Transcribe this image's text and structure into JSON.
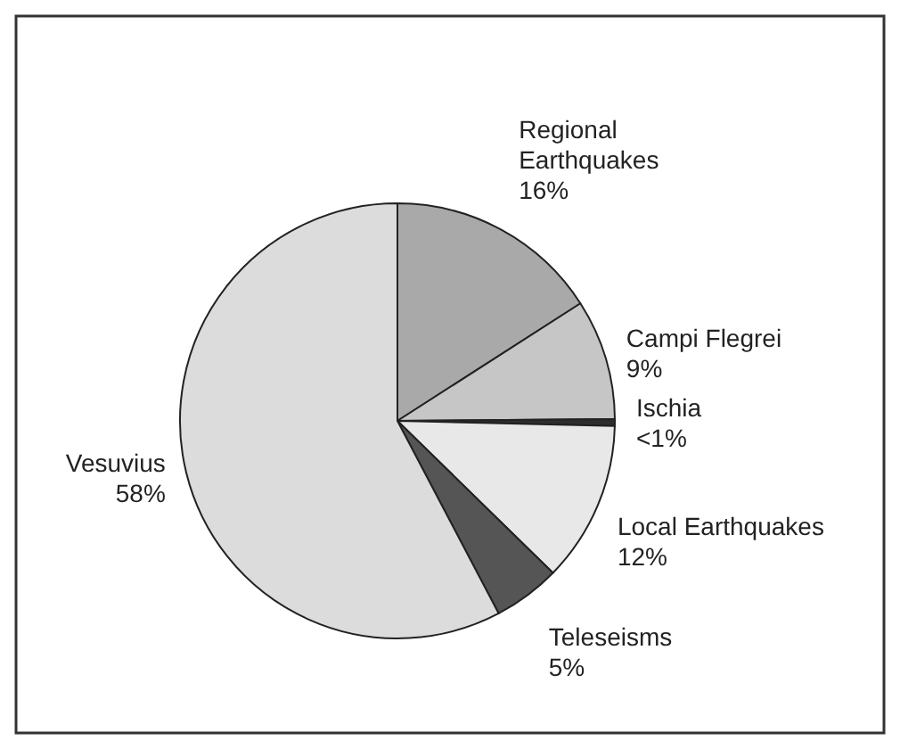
{
  "chart_data": {
    "type": "pie",
    "categories": [
      "Regional Earthquakes",
      "Campi Flegrei",
      "Ischia",
      "Local Earthquakes",
      "Teleseisms",
      "Vesuvius"
    ],
    "values": [
      16,
      9,
      0.5,
      12,
      5,
      58
    ],
    "value_labels": [
      "16%",
      "9%",
      "<1%",
      "12%",
      "5%",
      "58%"
    ],
    "colors": [
      "#a9a9a9",
      "#c6c6c6",
      "#2e2e2e",
      "#e8e8e8",
      "#555555",
      "#dcdcdc"
    ]
  }
}
